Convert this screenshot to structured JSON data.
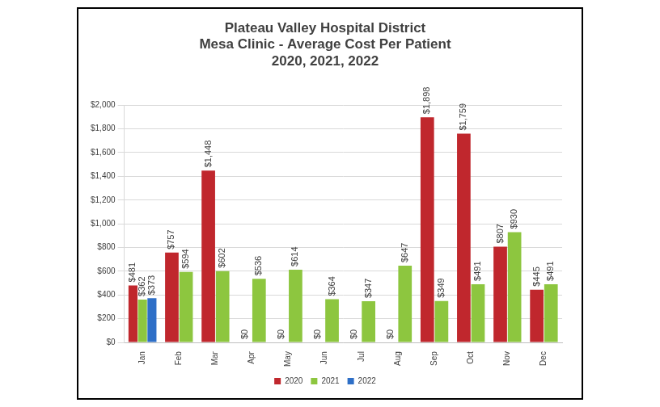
{
  "chart_data": {
    "type": "bar",
    "title": [
      "Plateau Valley Hospital District",
      "Mesa Clinic - Average Cost Per Patient",
      "2020, 2021, 2022"
    ],
    "categories": [
      "Jan",
      "Feb",
      "Mar",
      "Apr",
      "May",
      "Jun",
      "Jul",
      "Aug",
      "Sep",
      "Oct",
      "Nov",
      "Dec"
    ],
    "series": [
      {
        "name": "2020",
        "color": "#c0272d",
        "values": [
          481,
          757,
          1448,
          0,
          0,
          0,
          0,
          0,
          1898,
          1759,
          807,
          445
        ],
        "value_labels": [
          "$481",
          "$757",
          "$1,448",
          "$0",
          "$0",
          "$0",
          "$0",
          "$0",
          "$1,898",
          "$1,759",
          "$807",
          "$445"
        ]
      },
      {
        "name": "2021",
        "color": "#8dc63f",
        "values": [
          362,
          594,
          602,
          536,
          614,
          364,
          347,
          647,
          349,
          491,
          930,
          491
        ],
        "value_labels": [
          "$362",
          "$594",
          "$602",
          "$536",
          "$614",
          "$364",
          "$347",
          "$647",
          "$349",
          "$491",
          "$930",
          "$491"
        ]
      },
      {
        "name": "2022",
        "color": "#2e6fc7",
        "values": [
          373,
          null,
          null,
          null,
          null,
          null,
          null,
          null,
          null,
          null,
          null,
          null
        ],
        "value_labels": [
          "$373",
          null,
          null,
          null,
          null,
          null,
          null,
          null,
          null,
          null,
          null,
          null
        ]
      }
    ],
    "ylim": [
      0,
      2000
    ],
    "yticks": [
      {
        "value": 0,
        "label": "$0"
      },
      {
        "value": 200,
        "label": "$200"
      },
      {
        "value": 400,
        "label": "$400"
      },
      {
        "value": 600,
        "label": "$600"
      },
      {
        "value": 800,
        "label": "$800"
      },
      {
        "value": 1000,
        "label": "$1,000"
      },
      {
        "value": 1200,
        "label": "$1,200"
      },
      {
        "value": 1400,
        "label": "$1,400"
      },
      {
        "value": 1600,
        "label": "$1,600"
      },
      {
        "value": 1800,
        "label": "$1,800"
      },
      {
        "value": 2000,
        "label": "$2,000"
      }
    ],
    "grid": true,
    "legend": "bottom",
    "data_labels": true
  }
}
